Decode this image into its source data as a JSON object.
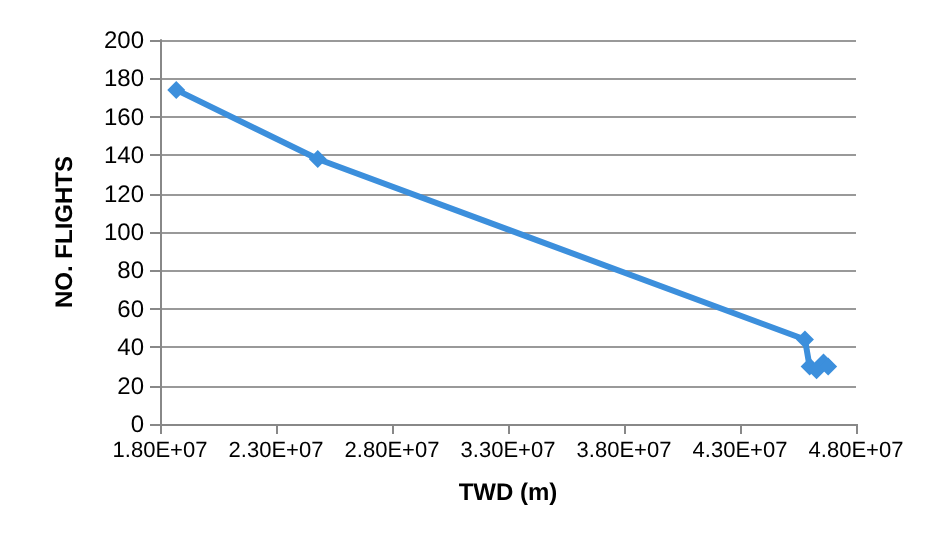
{
  "chart_data": {
    "type": "line",
    "xlabel": "TWD (m)",
    "ylabel": "NO. FLIGHTS",
    "x": [
      18700000,
      24800000,
      45800000,
      46000000,
      46300000,
      46600000,
      46800000
    ],
    "series": [
      {
        "color": "#3c8fdc",
        "values": [
          174,
          138,
          44,
          30,
          28,
          32,
          30
        ]
      }
    ],
    "xlim": [
      18000000,
      48000000
    ],
    "xticks": [
      {
        "value": 18000000,
        "label": "1.80E+07"
      },
      {
        "value": 23000000,
        "label": "2.30E+07"
      },
      {
        "value": 28000000,
        "label": "2.80E+07"
      },
      {
        "value": 33000000,
        "label": "3.30E+07"
      },
      {
        "value": 38000000,
        "label": "3.80E+07"
      },
      {
        "value": 43000000,
        "label": "4.30E+07"
      },
      {
        "value": 48000000,
        "label": "4.80E+07"
      }
    ],
    "ylim": [
      0,
      200
    ],
    "yticks": [
      0,
      20,
      40,
      60,
      80,
      100,
      120,
      140,
      160,
      180,
      200
    ],
    "grid": "y",
    "marker": "diamond",
    "line_style": "solid"
  }
}
